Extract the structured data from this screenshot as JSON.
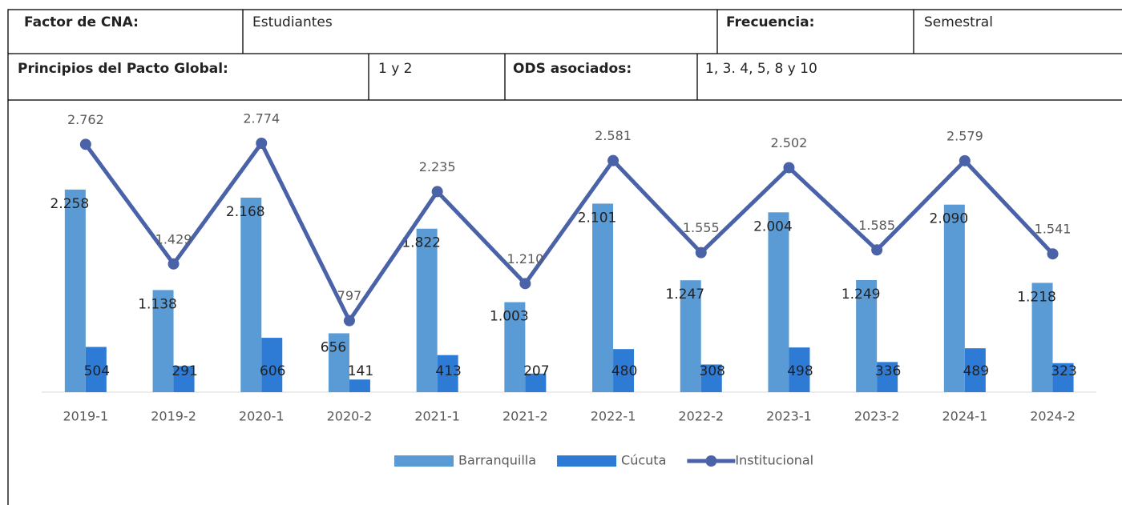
{
  "table": {
    "rows": [
      [
        "Factor de CNA:",
        "Estudiantes",
        "Frecuencia:",
        "Semestral"
      ],
      [
        "Principios del Pacto Global:",
        "1 y 2",
        "ODS asociados:",
        "1, 3. 4, 5, 8 y 10"
      ]
    ]
  },
  "chart_data": {
    "type": "bar_line",
    "categories": [
      "2019-1",
      "2019-2",
      "2020-1",
      "2020-2",
      "2021-1",
      "2021-2",
      "2022-1",
      "2022-2",
      "2023-1",
      "2023-2",
      "2024-1",
      "2024-2"
    ],
    "series": [
      {
        "name": "Barranquilla",
        "color": "#5b9bd5",
        "kind": "bar",
        "values": [
          2258,
          1138,
          2168,
          656,
          1822,
          1003,
          2101,
          1247,
          2004,
          1249,
          2090,
          1218
        ],
        "value_labels": [
          "2.258",
          "1.138",
          "2.168",
          "656",
          "1.822",
          "1.003",
          "2.101",
          "1.247",
          "2.004",
          "1.249",
          "2.090",
          "1.218"
        ]
      },
      {
        "name": "Cúcuta",
        "color": "#2e7bd6",
        "kind": "bar",
        "values": [
          504,
          291,
          606,
          141,
          413,
          207,
          480,
          308,
          498,
          336,
          489,
          323
        ],
        "value_labels": [
          "504",
          "291",
          "606",
          "141",
          "413",
          "207",
          "480",
          "308",
          "498",
          "336",
          "489",
          "323"
        ]
      },
      {
        "name": "Institucional",
        "color": "#4a62a8",
        "kind": "line",
        "values": [
          2762,
          1429,
          2774,
          797,
          2235,
          1210,
          2581,
          1555,
          2502,
          1585,
          2579,
          1541
        ],
        "value_labels": [
          "2.762",
          "1.429",
          "2.774",
          "797",
          "2.235",
          "1.210",
          "2.581",
          "1.555",
          "2.502",
          "1.585",
          "2.579",
          "1.541"
        ]
      }
    ],
    "legend": "bottom"
  }
}
